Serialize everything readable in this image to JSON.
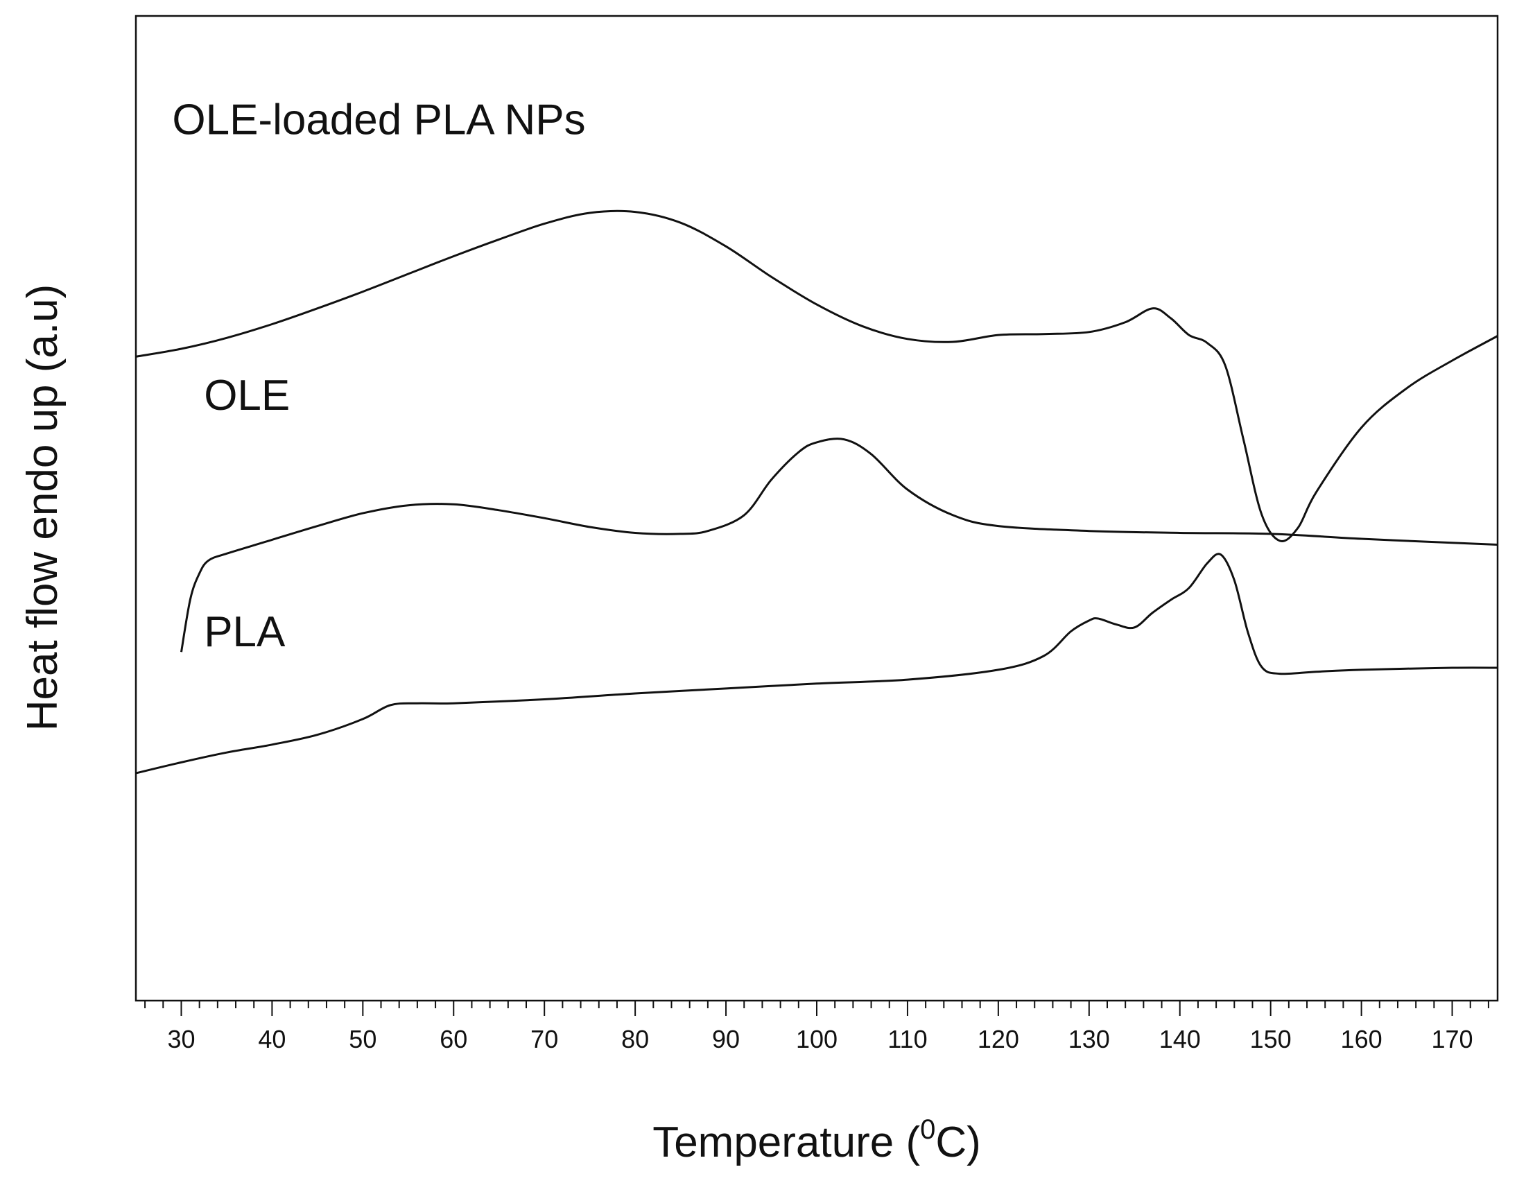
{
  "chart_data": {
    "type": "line",
    "title": "",
    "xlabel_main": "Temperature (",
    "xlabel_sup": "0",
    "xlabel_unit": "C)",
    "ylabel": "Heat flow endo up (a.u)",
    "xlim": [
      25,
      175
    ],
    "ylim": [
      0,
      100
    ],
    "x_ticks": [
      30,
      40,
      50,
      60,
      70,
      80,
      90,
      100,
      110,
      120,
      130,
      140,
      150,
      160,
      170
    ],
    "x_tick_labels": [
      "30",
      "40",
      "50",
      "60",
      "70",
      "80",
      "90",
      "100",
      "110",
      "120",
      "130",
      "140",
      "150",
      "160",
      "170"
    ],
    "y_ticks_visible": false,
    "grid": false,
    "series": [
      {
        "name": "OLE-loaded PLA NPs",
        "x": [
          25,
          30,
          35,
          40,
          45,
          50,
          55,
          60,
          65,
          70,
          75,
          80,
          85,
          90,
          95,
          100,
          105,
          110,
          115,
          120,
          125,
          130,
          134,
          137,
          139,
          141,
          143,
          145,
          147,
          149,
          151,
          153,
          155,
          160,
          165,
          170,
          175
        ],
        "y": [
          65.4,
          66.2,
          67.3,
          68.7,
          70.3,
          72.0,
          73.8,
          75.6,
          77.3,
          78.9,
          80.0,
          80.1,
          79.0,
          76.6,
          73.5,
          70.7,
          68.5,
          67.2,
          66.9,
          67.6,
          67.7,
          67.9,
          68.9,
          70.3,
          69.3,
          67.6,
          66.8,
          64.5,
          57.0,
          49.4,
          46.7,
          48.0,
          51.6,
          58.2,
          62.2,
          65.0,
          67.5
        ]
      },
      {
        "name": "OLE",
        "x": [
          30,
          31,
          32,
          33,
          35,
          40,
          45,
          50,
          55,
          60,
          65,
          70,
          75,
          80,
          85,
          88,
          92,
          95,
          98,
          100,
          103,
          106,
          110,
          115,
          120,
          130,
          140,
          150,
          160,
          170,
          175
        ],
        "y": [
          35.4,
          40.8,
          43.4,
          44.7,
          45.4,
          46.8,
          48.2,
          49.5,
          50.3,
          50.4,
          49.8,
          49.0,
          48.1,
          47.5,
          47.4,
          47.7,
          49.3,
          52.9,
          55.7,
          56.7,
          57.0,
          55.5,
          51.9,
          49.3,
          48.2,
          47.7,
          47.5,
          47.4,
          46.9,
          46.5,
          46.3
        ]
      },
      {
        "name": "PLA",
        "x": [
          25,
          30,
          35,
          40,
          45,
          50,
          53,
          56,
          60,
          70,
          80,
          90,
          100,
          110,
          120,
          125,
          128,
          130,
          131,
          133,
          135,
          137,
          139,
          141,
          143,
          144.5,
          146,
          147.5,
          149,
          151,
          155,
          160,
          170,
          175
        ],
        "y": [
          23.1,
          24.2,
          25.2,
          26.0,
          27.0,
          28.6,
          30.0,
          30.2,
          30.2,
          30.6,
          31.2,
          31.7,
          32.2,
          32.6,
          33.6,
          35.0,
          37.5,
          38.6,
          38.8,
          38.2,
          37.9,
          39.4,
          40.7,
          41.9,
          44.4,
          45.3,
          42.7,
          37.4,
          33.9,
          33.2,
          33.4,
          33.6,
          33.8,
          33.8
        ]
      }
    ],
    "annotations": [
      {
        "text": "OLE-loaded PLA NPs",
        "x": 29,
        "y": 88
      },
      {
        "text": "OLE",
        "x": 32.5,
        "y": 60
      },
      {
        "text": "PLA",
        "x": 32.5,
        "y": 36
      }
    ],
    "colors": {
      "line": "#111111",
      "axis": "#111111",
      "background": "#ffffff"
    }
  }
}
